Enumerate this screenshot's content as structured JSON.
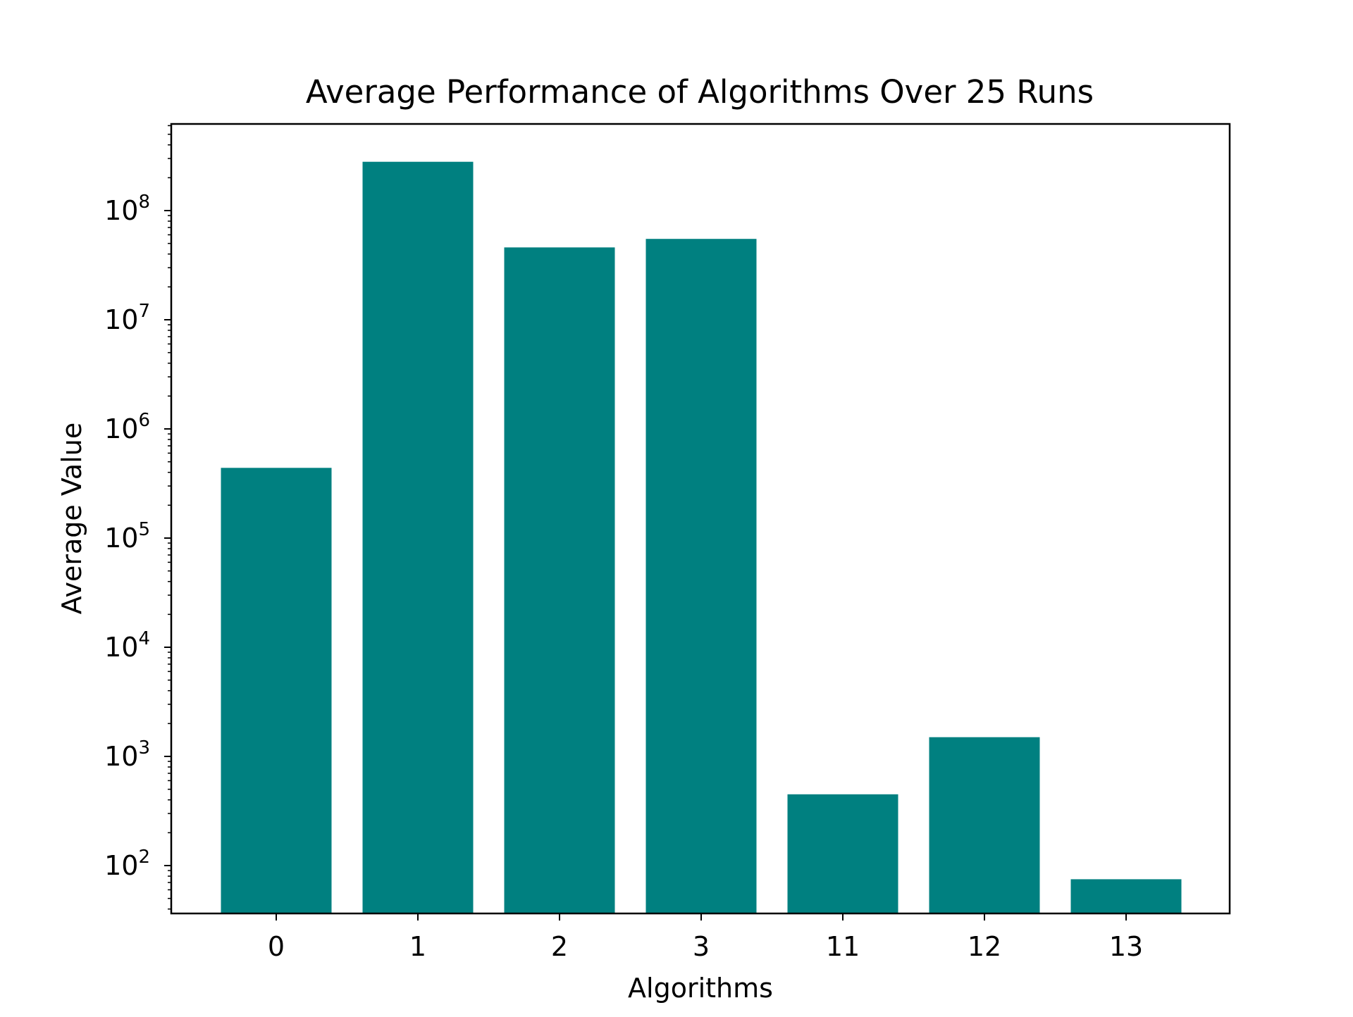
{
  "chart_data": {
    "type": "bar",
    "title": "Average Performance of Algorithms Over 25 Runs",
    "xlabel": "Algorithms",
    "ylabel": "Average Value",
    "categories": [
      "0",
      "1",
      "2",
      "3",
      "11",
      "12",
      "13"
    ],
    "values": [
      440000,
      280000000,
      46000000,
      55000000,
      450,
      1500,
      75
    ],
    "yscale": "log",
    "ylim": [
      38,
      600000000
    ],
    "y_major_ticks": [
      {
        "value": 100,
        "base": "10",
        "exp": "2"
      },
      {
        "value": 1000,
        "base": "10",
        "exp": "3"
      },
      {
        "value": 10000,
        "base": "10",
        "exp": "4"
      },
      {
        "value": 100000,
        "base": "10",
        "exp": "5"
      },
      {
        "value": 1000000,
        "base": "10",
        "exp": "6"
      },
      {
        "value": 10000000,
        "base": "10",
        "exp": "7"
      },
      {
        "value": 100000000,
        "base": "10",
        "exp": "8"
      }
    ],
    "grid": false,
    "legend": "none",
    "colors": {
      "bar": "#008080",
      "axis": "#000000"
    }
  }
}
